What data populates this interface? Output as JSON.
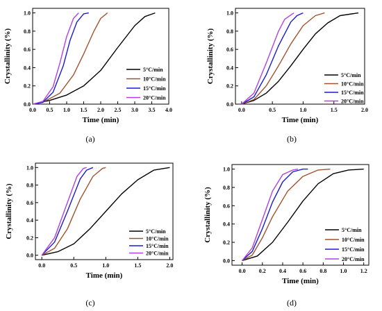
{
  "chart_data": [
    {
      "type": "line",
      "label": "(a)",
      "xlabel": "Time (min)",
      "ylabel": "Crystallinity (%)",
      "xlim": [
        0,
        4.0
      ],
      "ylim": [
        0,
        1.05
      ],
      "xticks": [
        "0.0",
        "0.5",
        "1.0",
        "1.5",
        "2.0",
        "2.5",
        "3.0",
        "3.5",
        "4.0"
      ],
      "yticks": [
        "0.0",
        "0.2",
        "0.4",
        "0.6",
        "0.8",
        "1.0"
      ],
      "grid": false,
      "legend": "right",
      "series": [
        {
          "name": "5°C/min",
          "color": "#000000",
          "x": [
            0,
            0.5,
            1.0,
            1.5,
            2.0,
            2.5,
            3.0,
            3.3,
            3.6
          ],
          "y": [
            0,
            0.04,
            0.1,
            0.2,
            0.37,
            0.62,
            0.86,
            0.96,
            1.0
          ]
        },
        {
          "name": "10°C/min",
          "color": "#a0522d",
          "x": [
            0,
            0.3,
            0.8,
            1.2,
            1.5,
            1.8,
            2.0,
            2.2
          ],
          "y": [
            0,
            0.02,
            0.12,
            0.32,
            0.55,
            0.8,
            0.94,
            1.0
          ]
        },
        {
          "name": "15°C/min",
          "color": "#1a1ad0",
          "x": [
            0,
            0.3,
            0.6,
            0.9,
            1.1,
            1.3,
            1.5,
            1.65
          ],
          "y": [
            0,
            0.02,
            0.13,
            0.42,
            0.7,
            0.9,
            0.99,
            1.0
          ]
        },
        {
          "name": "20°C/min",
          "color": "#b040e0",
          "x": [
            0,
            0.3,
            0.6,
            0.8,
            1.0,
            1.2,
            1.35
          ],
          "y": [
            0,
            0.03,
            0.19,
            0.45,
            0.74,
            0.94,
            1.0
          ]
        }
      ]
    },
    {
      "type": "line",
      "label": "(b)",
      "xlabel": "Time (min)",
      "ylabel": "Crystallinity (%)",
      "xlim": [
        -0.1,
        2.0
      ],
      "ylim": [
        0,
        1.05
      ],
      "xticks": [
        "0.0",
        "0.5",
        "1.0",
        "1.5",
        "2.0"
      ],
      "yticks": [
        "0.0",
        "0.2",
        "0.4",
        "0.6",
        "0.8",
        "1.0"
      ],
      "grid": false,
      "legend": "right",
      "series": [
        {
          "name": "5°C/min",
          "color": "#000000",
          "x": [
            0,
            0.2,
            0.4,
            0.6,
            0.8,
            1.0,
            1.2,
            1.4,
            1.6,
            1.9
          ],
          "y": [
            0,
            0.04,
            0.12,
            0.25,
            0.42,
            0.6,
            0.77,
            0.89,
            0.97,
            1.0
          ]
        },
        {
          "name": "10°C/min",
          "color": "#a0522d",
          "x": [
            0,
            0.2,
            0.4,
            0.6,
            0.8,
            1.0,
            1.2,
            1.35
          ],
          "y": [
            0,
            0.05,
            0.2,
            0.42,
            0.66,
            0.86,
            0.97,
            1.0
          ]
        },
        {
          "name": "15°C/min",
          "color": "#1a1ad0",
          "x": [
            0,
            0.2,
            0.4,
            0.6,
            0.8,
            0.9,
            1.0
          ],
          "y": [
            0,
            0.08,
            0.32,
            0.64,
            0.9,
            0.97,
            1.0
          ]
        },
        {
          "name": "20°C/min",
          "color": "#b040e0",
          "x": [
            0,
            0.2,
            0.4,
            0.6,
            0.7,
            0.85
          ],
          "y": [
            0,
            0.12,
            0.45,
            0.8,
            0.93,
            1.0
          ]
        }
      ]
    },
    {
      "type": "line",
      "label": "(c)",
      "xlabel": "Time (min)",
      "ylabel": "Crystallinity (%)",
      "xlim": [
        -0.1,
        2.05
      ],
      "ylim": [
        -0.05,
        1.05
      ],
      "xticks": [
        "0.0",
        "0.5",
        "1.0",
        "1.5",
        "2.0"
      ],
      "yticks": [
        "0.0",
        "0.2",
        "0.4",
        "0.6",
        "0.8",
        "1.0"
      ],
      "grid": false,
      "legend": "bottom-right",
      "series": [
        {
          "name": "5°C/min",
          "color": "#000000",
          "x": [
            0,
            0.25,
            0.5,
            0.75,
            1.0,
            1.25,
            1.5,
            1.75,
            2.0
          ],
          "y": [
            0,
            0.04,
            0.13,
            0.3,
            0.5,
            0.7,
            0.86,
            0.97,
            1.0
          ]
        },
        {
          "name": "10°C/min",
          "color": "#a0522d",
          "x": [
            0,
            0.2,
            0.4,
            0.6,
            0.8,
            0.95,
            1.0
          ],
          "y": [
            0,
            0.08,
            0.3,
            0.64,
            0.9,
            0.99,
            1.0
          ]
        },
        {
          "name": "15°C/min",
          "color": "#1a1ad0",
          "x": [
            0,
            0.2,
            0.4,
            0.6,
            0.7,
            0.8
          ],
          "y": [
            0,
            0.15,
            0.5,
            0.87,
            0.97,
            1.0
          ]
        },
        {
          "name": "20°C/min",
          "color": "#b040e0",
          "x": [
            0,
            0.2,
            0.4,
            0.55,
            0.65,
            0.7
          ],
          "y": [
            0,
            0.2,
            0.6,
            0.9,
            0.99,
            1.0
          ]
        }
      ]
    },
    {
      "type": "line",
      "label": "(d)",
      "xlabel": "Time (min)",
      "ylabel": "Crystallinity (%)",
      "xlim": [
        -0.1,
        1.25
      ],
      "ylim": [
        -0.05,
        1.05
      ],
      "xticks": [
        "0.0",
        "0.2",
        "0.4",
        "0.6",
        "0.8",
        "1.0",
        "1.2"
      ],
      "yticks": [
        "0.0",
        "0.2",
        "0.4",
        "0.6",
        "0.8",
        "1.0"
      ],
      "grid": false,
      "legend": "bottom-right",
      "series": [
        {
          "name": "5°C/min",
          "color": "#000000",
          "x": [
            0,
            0.15,
            0.3,
            0.45,
            0.6,
            0.75,
            0.9,
            1.05,
            1.2
          ],
          "y": [
            0,
            0.05,
            0.2,
            0.42,
            0.65,
            0.84,
            0.95,
            0.99,
            1.0
          ]
        },
        {
          "name": "10°C/min",
          "color": "#a0522d",
          "x": [
            0,
            0.1,
            0.2,
            0.3,
            0.45,
            0.6,
            0.75,
            0.87
          ],
          "y": [
            0,
            0.06,
            0.25,
            0.48,
            0.76,
            0.92,
            0.99,
            1.0
          ]
        },
        {
          "name": "15°C/min",
          "color": "#1a1ad0",
          "x": [
            0,
            0.1,
            0.2,
            0.3,
            0.4,
            0.5,
            0.6,
            0.65
          ],
          "y": [
            0,
            0.1,
            0.35,
            0.64,
            0.86,
            0.97,
            1.0,
            1.0
          ]
        },
        {
          "name": "20°C/min",
          "color": "#b040e0",
          "x": [
            0,
            0.1,
            0.2,
            0.3,
            0.4,
            0.5,
            0.55
          ],
          "y": [
            0,
            0.14,
            0.45,
            0.76,
            0.94,
            0.99,
            1.0
          ]
        }
      ]
    }
  ]
}
